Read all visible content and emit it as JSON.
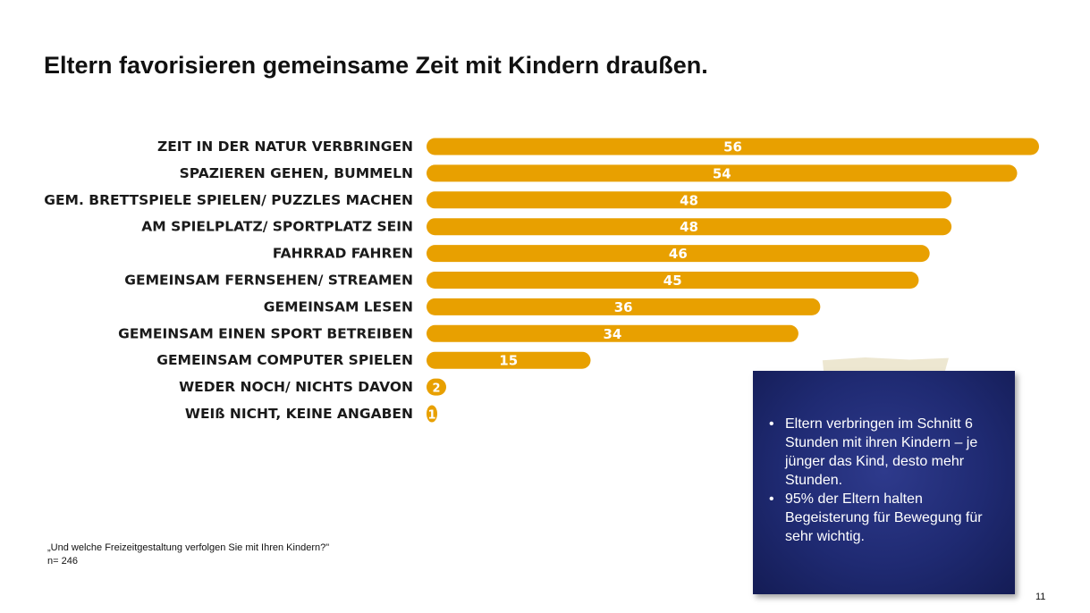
{
  "slide": {
    "title": "Eltern favorisieren gemeinsame Zeit mit Kindern draußen.",
    "page_number": "11"
  },
  "colors": {
    "bar": "#e8a000",
    "bar_label": "#ffffff",
    "category_text": "#1a1a1a",
    "note_background": "#1f2a72",
    "tape": "#ece6cf"
  },
  "chart_data": {
    "type": "bar",
    "orientation": "horizontal",
    "title": "",
    "xlabel": "",
    "ylabel": "",
    "xlim": [
      0,
      56
    ],
    "categories": [
      "ZEIT IN DER NATUR VERBRINGEN",
      "SPAZIEREN GEHEN, BUMMELN",
      "GEM. BRETTSPIELE SPIELEN/ PUZZLES MACHEN",
      "AM SPIELPLATZ/ SPORTPLATZ SEIN",
      "FAHRRAD FAHREN",
      "GEMEINSAM FERNSEHEN/ STREAMEN",
      "GEMEINSAM LESEN",
      "GEMEINSAM EINEN SPORT BETREIBEN",
      "GEMEINSAM COMPUTER SPIELEN",
      "WEDER NOCH/ NICHTS DAVON",
      "WEIß NICHT, KEINE ANGABEN"
    ],
    "values": [
      56,
      54,
      48,
      48,
      46,
      45,
      36,
      34,
      15,
      2,
      1
    ],
    "data_labels": [
      "56",
      "54",
      "48",
      "48",
      "46",
      "45",
      "36",
      "34",
      "15",
      "2",
      "1"
    ]
  },
  "note": {
    "bullets": [
      "Eltern verbringen im Schnitt 6 Stunden mit ihren Kindern – je jünger das Kind, desto mehr Stunden.",
      "95% der Eltern halten Begeisterung für Bewegung für sehr wichtig."
    ],
    "bullet_symbol": "•"
  },
  "footnote": {
    "question": "„Und welche Freizeitgestaltung verfolgen Sie mit Ihren Kindern?\"",
    "sample": "n= 246"
  }
}
